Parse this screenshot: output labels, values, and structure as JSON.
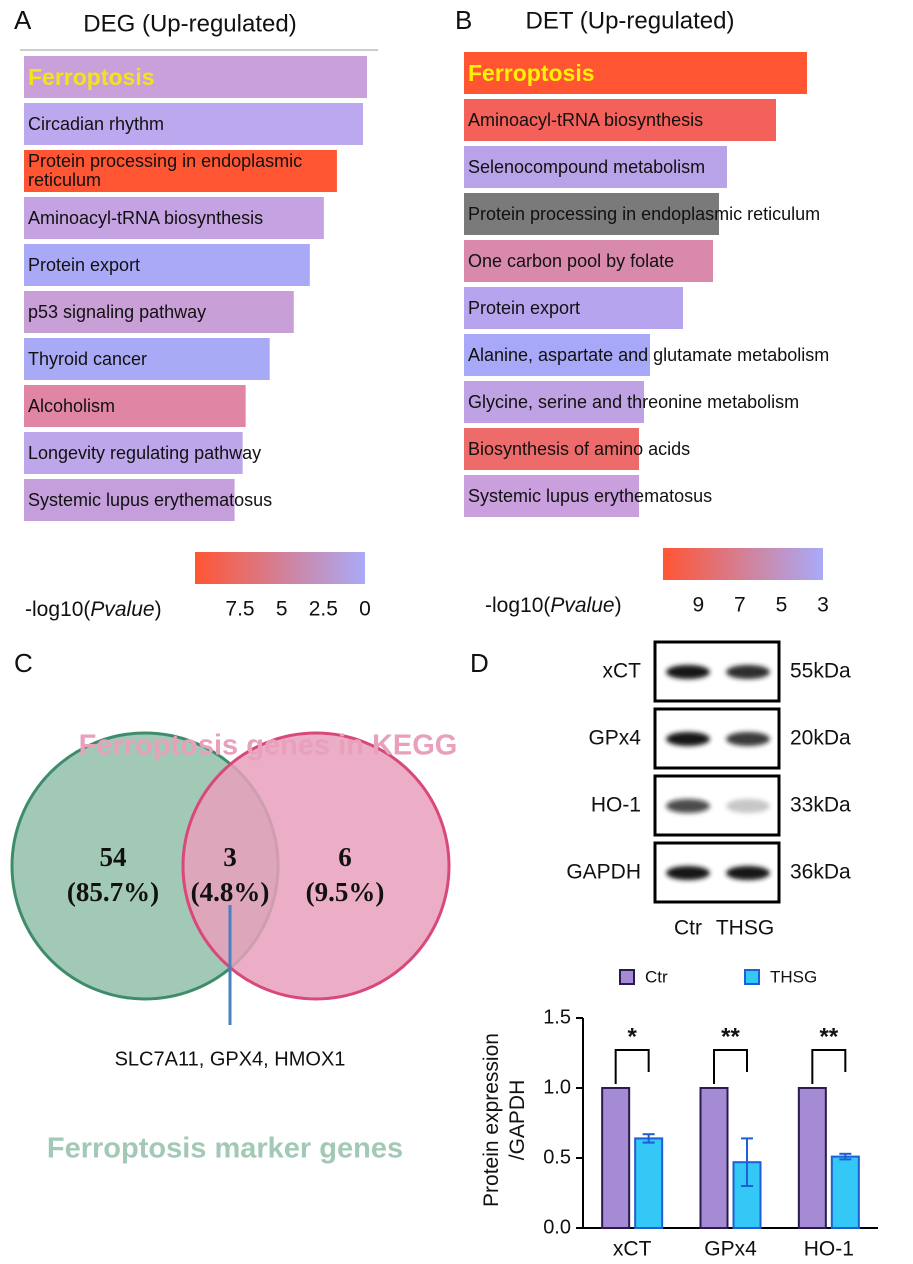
{
  "chart_data": [
    {
      "type": "hbar",
      "panel": "A",
      "title": "DEG (Up-regulated)",
      "categories": [
        "Ferroptosis",
        "Circadian rhythm",
        "Protein processing in endoplasmic reticulum",
        "Aminoacyl-tRNA biosynthesis",
        "Protein export",
        "p53 signaling pathway",
        "Thyroid cancer",
        "Alcoholism",
        "Longevity regulating pathway",
        "Systemic lupus erythematosus"
      ],
      "values": [
        342,
        338,
        312,
        299,
        285,
        269,
        245,
        221,
        218,
        210
      ],
      "colors": [
        "#c9a0da",
        "#bca8ee",
        "#ff5533",
        "#c5a2e2",
        "#a9a9f8",
        "#c89fd6",
        "#a9aaf6",
        "#e085a3",
        "#bda6ea",
        "#c59fdc"
      ],
      "colorbar": {
        "label": [
          "-log10(",
          "Pvalue",
          ")"
        ],
        "clim": [
          10.2,
          0
        ],
        "ticks": [
          7.5,
          5,
          2.5,
          0
        ],
        "colors": [
          "#ff5533",
          "#a9aaf8"
        ]
      }
    },
    {
      "type": "hbar",
      "panel": "B",
      "title": "DET (Up-regulated)",
      "categories": [
        "Ferroptosis",
        "Aminoacyl-tRNA biosynthesis",
        "Selenocompound metabolism",
        "Protein processing in endoplasmic reticulum",
        "One carbon pool by folate",
        "Protein export",
        "Alanine, aspartate and glutamate metabolism",
        "Glycine, serine and threonine metabolism",
        "Biosynthesis of amino acids",
        "Systemic lupus erythematosus"
      ],
      "values": [
        343,
        312,
        263,
        255,
        249,
        219,
        186,
        180,
        175,
        175
      ],
      "colors": [
        "#ff5533",
        "#f4605a",
        "#b9a3e8",
        "#7a7a7a",
        "#d98aac",
        "#b6a5ee",
        "#a8a8f8",
        "#bfa2e3",
        "#ee6b6b",
        "#c9a0dd"
      ],
      "colorbar": {
        "label": [
          "-log10(",
          "Pvalue",
          ")"
        ],
        "clim": [
          10.7,
          3
        ],
        "ticks": [
          9,
          7,
          5,
          3
        ],
        "colors": [
          "#ff5533",
          "#a9aaf8"
        ]
      }
    },
    {
      "type": "venn",
      "panel": "C",
      "sets": [
        {
          "name": "Ferroptosis marker genes",
          "color": "#a2c9b5",
          "edgecolor": "#3e8c6b"
        },
        {
          "name": "Ferroptosis genes in KEGG",
          "color": "#e8a0bc",
          "edgecolor": "#d9487a"
        }
      ],
      "values": [
        54,
        3,
        6
      ],
      "percents": [
        85.7,
        4.8,
        9.5
      ],
      "percent_labels": [
        "(85.7%)",
        "(4.8%)",
        "(9.5%)"
      ],
      "annotation": "SLC7A11, GPX4, HMOX1"
    },
    {
      "type": "blot",
      "panel": "D",
      "proteins": [
        "xCT",
        "GPx4",
        "HO-1",
        "GAPDH"
      ],
      "sizes": [
        "55kDa",
        "20kDa",
        "33kDa",
        "36kDa"
      ],
      "lanes": [
        "Ctr",
        "THSG"
      ]
    },
    {
      "type": "grouped_bar",
      "categories": [
        "xCT",
        "GPx4",
        "HO-1"
      ],
      "series": [
        {
          "name": "Ctr",
          "color": "#a48bd4",
          "edgecolor": "#2b1a4f",
          "values": [
            1,
            1,
            1
          ]
        },
        {
          "name": "THSG",
          "color": "#33c8f5",
          "edgecolor": "#1f5fd6",
          "values": [
            0.64,
            0.47,
            0.51
          ],
          "errors": [
            0.03,
            0.17,
            0.02
          ]
        }
      ],
      "ylabel": [
        "Protein expression",
        "/GAPDH"
      ],
      "ylim": [
        0,
        1.5
      ],
      "yticks": [
        {
          "value": 0,
          "label": "0.0"
        },
        0.5,
        {
          "value": 1,
          "label": "1.0"
        },
        1.5
      ],
      "significance": [
        "*",
        "**",
        "**"
      ],
      "legend": "top"
    }
  ]
}
